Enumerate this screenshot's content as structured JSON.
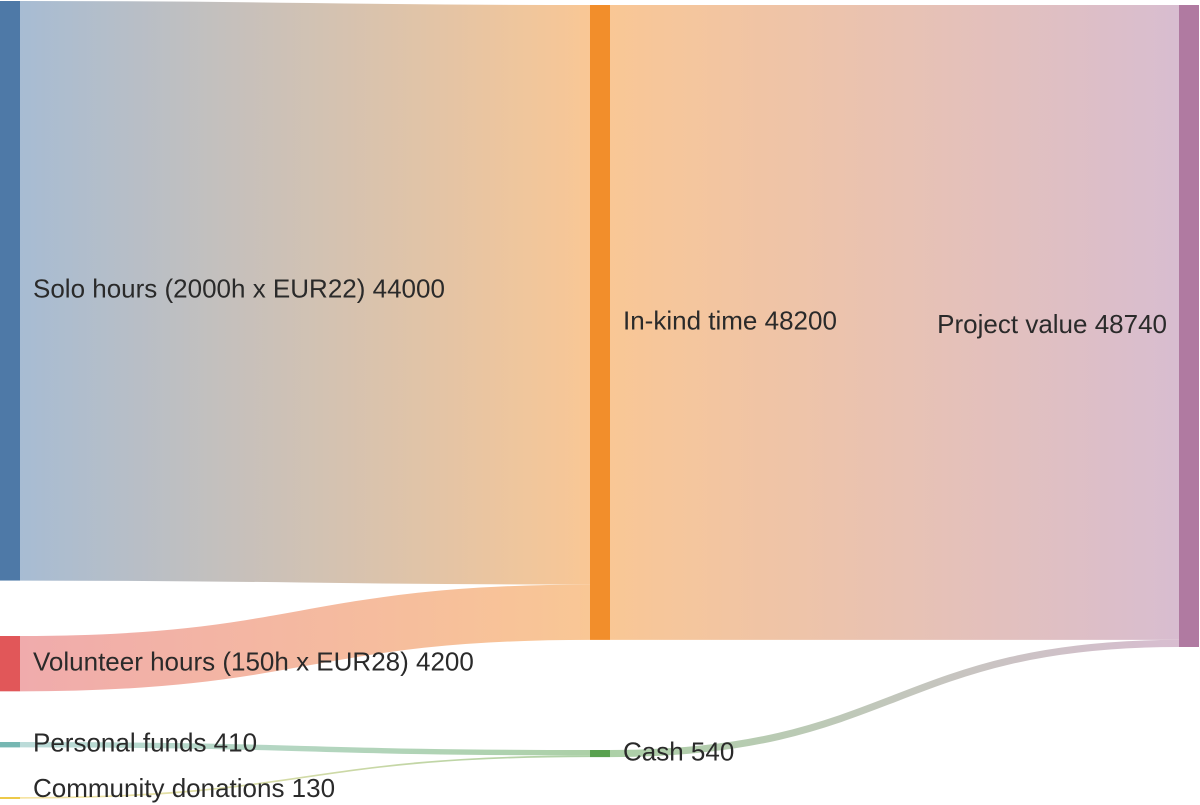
{
  "chart_data": {
    "type": "sankey",
    "title": "",
    "nodes": [
      {
        "id": "solo",
        "label": "Solo hours (2000h x EUR22) 44000",
        "value": 44000,
        "color": "#4e79a7",
        "column": 0
      },
      {
        "id": "volunteer",
        "label": "Volunteer hours (150h x EUR28) 4200",
        "value": 4200,
        "color": "#e15759",
        "column": 0
      },
      {
        "id": "personal",
        "label": "Personal funds 410",
        "value": 410,
        "color": "#76b7b2",
        "column": 0
      },
      {
        "id": "community",
        "label": "Community donations 130",
        "value": 130,
        "color": "#edc948",
        "column": 0
      },
      {
        "id": "inkind",
        "label": "In-kind time 48200",
        "value": 48200,
        "color": "#f28e2b",
        "column": 1
      },
      {
        "id": "cash",
        "label": "Cash 540",
        "value": 540,
        "color": "#59a14f",
        "column": 1
      },
      {
        "id": "project",
        "label": "Project value 48740",
        "value": 48740,
        "color": "#b07aa1",
        "column": 2
      }
    ],
    "links": [
      {
        "source": "solo",
        "target": "inkind",
        "value": 44000
      },
      {
        "source": "volunteer",
        "target": "inkind",
        "value": 4200
      },
      {
        "source": "personal",
        "target": "cash",
        "value": 410
      },
      {
        "source": "community",
        "target": "cash",
        "value": 130
      },
      {
        "source": "inkind",
        "target": "project",
        "value": 48200
      },
      {
        "source": "cash",
        "target": "project",
        "value": 540
      }
    ]
  }
}
